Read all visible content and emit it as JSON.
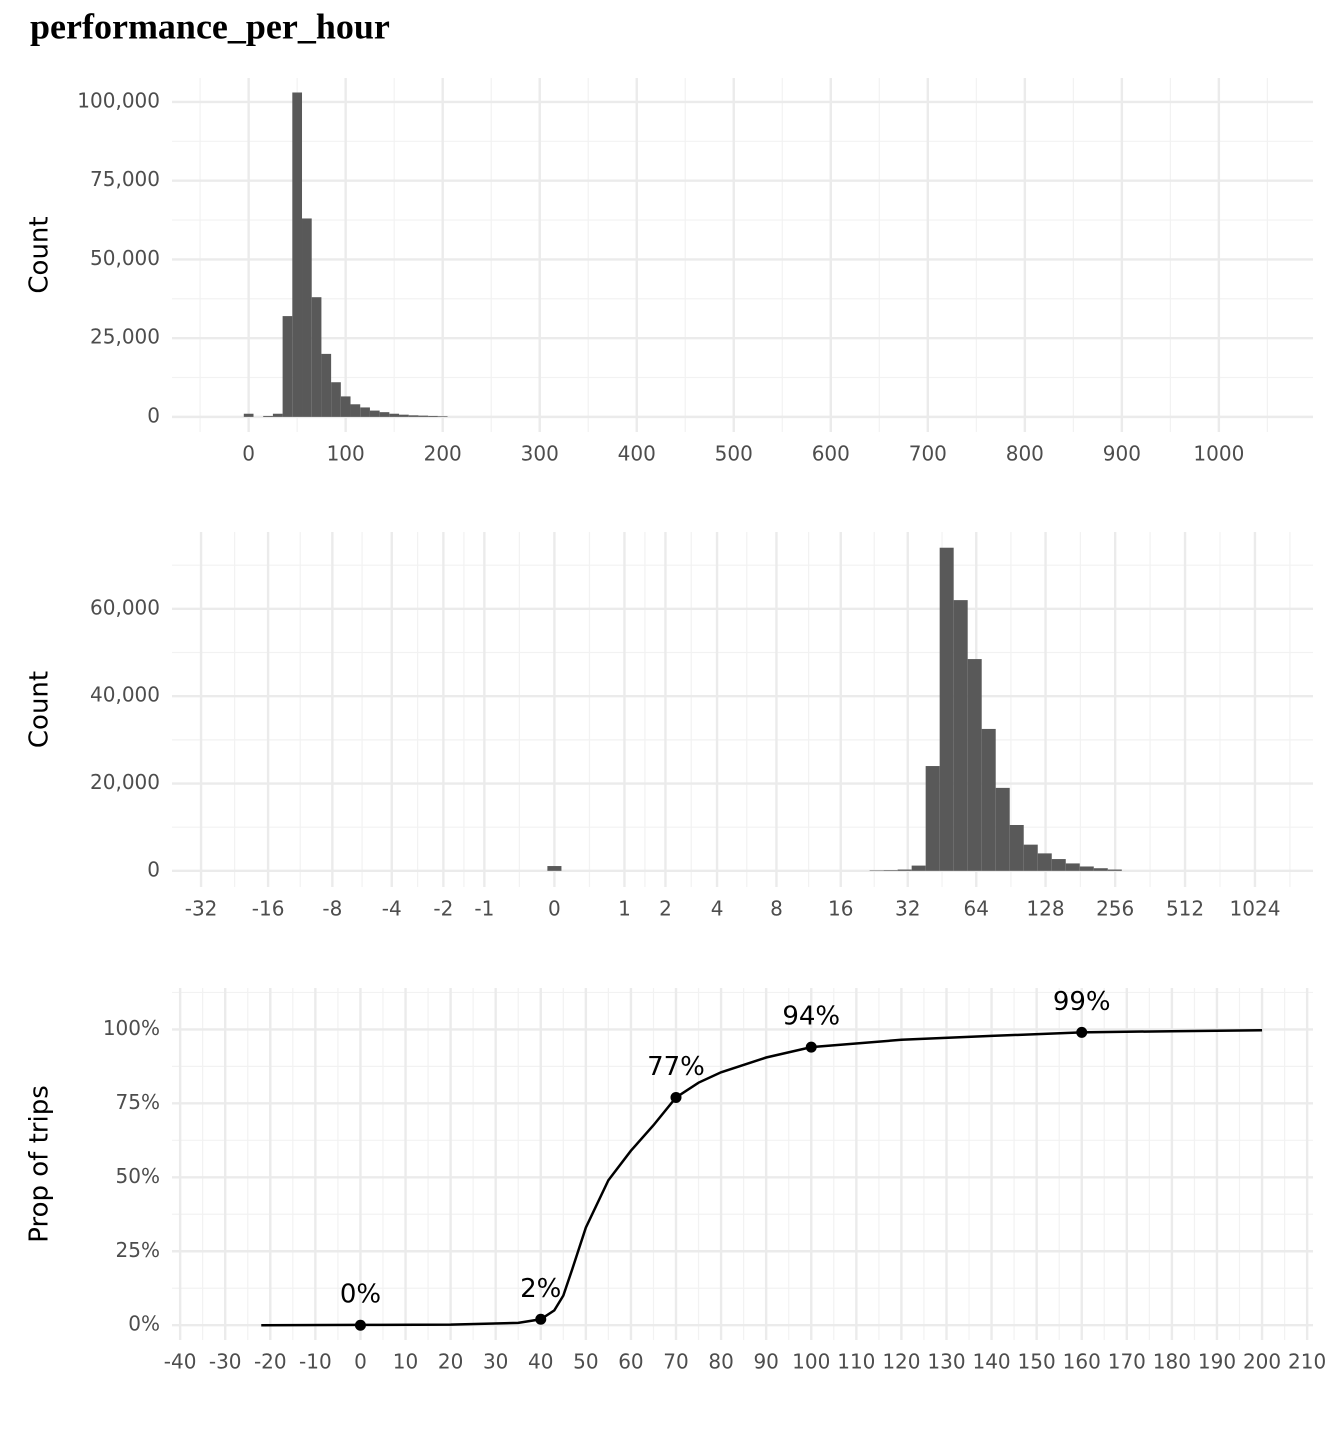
{
  "chart_data": [
    {
      "type": "histogram",
      "title": "performance_per_hour",
      "ylabel": "Count",
      "color": "#595959",
      "bins": [
        -5,
        5,
        15,
        25,
        35,
        45,
        55,
        65,
        75,
        85,
        95,
        105,
        115,
        125,
        135,
        145,
        155,
        165,
        175,
        185,
        195,
        205
      ],
      "values": [
        1000,
        0,
        300,
        1000,
        32000,
        103000,
        63000,
        38000,
        20000,
        11000,
        6500,
        4000,
        3000,
        2000,
        1500,
        1000,
        700,
        500,
        400,
        300,
        200
      ],
      "xlim": [
        -79,
        1097
      ],
      "ylim": [
        -4800,
        107600
      ],
      "xticks": [
        0,
        100,
        200,
        300,
        400,
        500,
        600,
        700,
        800,
        900,
        1000
      ],
      "yticks": [
        0,
        {
          "value": 25000,
          "label": "25,000"
        },
        {
          "value": 50000,
          "label": "50,000"
        },
        {
          "value": 75000,
          "label": "75,000"
        },
        {
          "value": 100000,
          "label": "100,000"
        }
      ],
      "grid": true
    },
    {
      "type": "histogram",
      "ylabel": "Count",
      "color": "#595959",
      "xscale": "signed-log2p1",
      "bins": [
        -0.072,
        0.072,
        0.231,
        0.414,
        0.625,
        0.866,
        1.144,
        1.462,
        1.828,
        2.249,
        2.732,
        3.287,
        3.925,
        4.657,
        5.498,
        6.464,
        7.574,
        8.849,
        10.314,
        11.996,
        13.929,
        16.148,
        18.698,
        21.627,
        24.992,
        28.857,
        33.297,
        38.397,
        44.255,
        50.984,
        58.714,
        67.594,
        77.793,
        89.51,
        102.97,
        118.43,
        136.19,
        156.59,
        180.02,
        206.94,
        237.86,
        273.37
      ],
      "values": [
        1100,
        0,
        0,
        0,
        0,
        0,
        0,
        0,
        0,
        0,
        0,
        0,
        0,
        0,
        0,
        0,
        0,
        0,
        0,
        0,
        0,
        0,
        0,
        100,
        150,
        300,
        1200,
        24000,
        74000,
        62000,
        48500,
        32500,
        19000,
        10500,
        6000,
        4000,
        2700,
        1700,
        1000,
        600,
        300
      ],
      "xlim": [
        -43,
        1819
      ],
      "ylim": [
        -3700,
        77600
      ],
      "xticks": [
        -32,
        -16,
        -8,
        -4,
        -2,
        -1,
        0,
        1,
        2,
        4,
        8,
        16,
        32,
        64,
        128,
        256,
        512,
        1024
      ],
      "yticks": [
        0,
        {
          "value": 20000,
          "label": "20,000"
        },
        {
          "value": 40000,
          "label": "40,000"
        },
        {
          "value": 60000,
          "label": "60,000"
        }
      ],
      "grid": true
    },
    {
      "type": "line",
      "ylabel": "Prop of trips",
      "color": "#000000",
      "x": [
        -22,
        0,
        20,
        35,
        40,
        43,
        45,
        47,
        50,
        55,
        60,
        65,
        70,
        75,
        80,
        90,
        100,
        120,
        140,
        160,
        180,
        200
      ],
      "values": [
        0,
        0.1,
        0.2,
        0.8,
        2,
        5,
        10,
        19,
        33,
        49,
        59,
        67.6,
        77,
        82,
        85.5,
        90.5,
        94,
        96.5,
        97.8,
        99,
        99.4,
        99.7
      ],
      "markers": {
        "x": [
          0,
          40,
          70,
          100,
          160
        ],
        "values": [
          0,
          2,
          77,
          94,
          99
        ],
        "value_labels": [
          "0%",
          "2%",
          "77%",
          "94%",
          "99%"
        ]
      },
      "xlim": [
        -41.8,
        211.3
      ],
      "ylim": [
        -5,
        114
      ],
      "xticks": [
        -40,
        -30,
        -20,
        -10,
        0,
        10,
        20,
        30,
        40,
        50,
        60,
        70,
        80,
        90,
        100,
        110,
        120,
        130,
        140,
        150,
        160,
        170,
        180,
        190,
        200,
        210
      ],
      "yticks": [
        {
          "value": 0,
          "label": "0%"
        },
        {
          "value": 25,
          "label": "25%"
        },
        {
          "value": 50,
          "label": "50%"
        },
        {
          "value": 75,
          "label": "75%"
        },
        {
          "value": 100,
          "label": "100%"
        }
      ],
      "grid": true
    }
  ]
}
